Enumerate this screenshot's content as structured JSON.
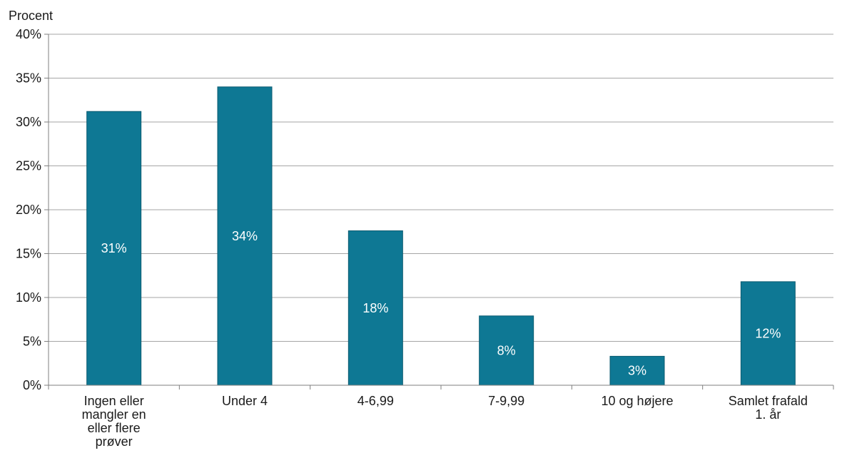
{
  "chart_data": {
    "type": "bar",
    "ylabel": "Procent",
    "xlabel": "",
    "ylim": [
      0,
      40
    ],
    "yticks": [
      0,
      5,
      10,
      15,
      20,
      25,
      30,
      35,
      40
    ],
    "ytick_labels": [
      "0%",
      "5%",
      "10%",
      "15%",
      "20%",
      "25%",
      "30%",
      "35%",
      "40%"
    ],
    "grid": true,
    "categories": [
      [
        "Ingen eller",
        "mangler en",
        "eller flere",
        "prøver"
      ],
      [
        "Under 4"
      ],
      [
        "4-6,99"
      ],
      [
        "7-9,99"
      ],
      [
        "10 og højere"
      ],
      [
        "Samlet frafald",
        "1. år"
      ]
    ],
    "values": [
      31.2,
      34.0,
      17.6,
      7.9,
      3.3,
      11.8
    ],
    "data_labels": [
      "31%",
      "34%",
      "18%",
      "8%",
      "3%",
      "12%"
    ],
    "bar_color": "#0e7894",
    "bar_edge_color": "#0b5b71"
  }
}
